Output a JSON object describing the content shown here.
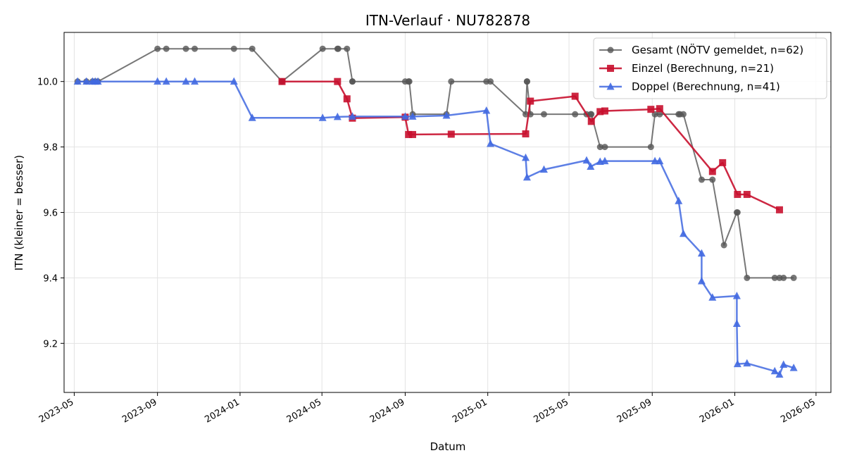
{
  "chart_data": {
    "type": "line",
    "title": "ITN-Verlauf · NU782878",
    "xlabel": "Datum",
    "ylabel": "ITN  (kleiner = besser)",
    "xlim": [
      "2023-04-16",
      "2026-05-23"
    ],
    "ylim": [
      9.05,
      10.15
    ],
    "x_ticks": [
      "2023-05-01",
      "2023-09-01",
      "2024-01-01",
      "2024-05-01",
      "2024-09-01",
      "2025-01-01",
      "2025-05-01",
      "2025-09-01",
      "2026-01-01",
      "2026-05-01"
    ],
    "x_tick_labels": [
      "2023-05",
      "2023-09",
      "2024-01",
      "2024-05",
      "2024-09",
      "2025-01",
      "2025-05",
      "2025-09",
      "2026-01",
      "2026-05"
    ],
    "y_ticks": [
      9.2,
      9.4,
      9.6,
      9.8,
      10.0
    ],
    "y_tick_labels": [
      "9.2",
      "9.4",
      "9.6",
      "9.8",
      "10.0"
    ],
    "grid": true,
    "legend_position": "top-right",
    "series": [
      {
        "name": "Gesamt (NÖTV gemeldet, n=62)",
        "color": "#555555",
        "marker": "circle",
        "points": [
          [
            "2023-05-06",
            10.0
          ],
          [
            "2023-05-19",
            10.0
          ],
          [
            "2023-05-28",
            10.0
          ],
          [
            "2023-06-01",
            10.0
          ],
          [
            "2023-06-05",
            10.0
          ],
          [
            "2023-09-01",
            10.1
          ],
          [
            "2023-09-14",
            10.1
          ],
          [
            "2023-10-13",
            10.1
          ],
          [
            "2023-10-26",
            10.1
          ],
          [
            "2023-12-23",
            10.1
          ],
          [
            "2024-01-19",
            10.1
          ],
          [
            "2024-03-03",
            10.0
          ],
          [
            "2024-03-03",
            10.0
          ],
          [
            "2024-05-02",
            10.1
          ],
          [
            "2024-05-24",
            10.1
          ],
          [
            "2024-05-25",
            10.1
          ],
          [
            "2024-06-07",
            10.1
          ],
          [
            "2024-06-15",
            10.0
          ],
          [
            "2024-06-15",
            10.0
          ],
          [
            "2024-09-01",
            10.0
          ],
          [
            "2024-09-06",
            10.0
          ],
          [
            "2024-09-07",
            10.0
          ],
          [
            "2024-09-12",
            9.9
          ],
          [
            "2024-11-01",
            9.9
          ],
          [
            "2024-11-08",
            10.0
          ],
          [
            "2024-12-30",
            10.0
          ],
          [
            "2025-01-05",
            10.0
          ],
          [
            "2025-02-26",
            9.9
          ],
          [
            "2025-02-28",
            10.0
          ],
          [
            "2025-02-28",
            10.0
          ],
          [
            "2025-03-05",
            9.9
          ],
          [
            "2025-03-25",
            9.9
          ],
          [
            "2025-05-10",
            9.9
          ],
          [
            "2025-05-27",
            9.9
          ],
          [
            "2025-06-02",
            9.9
          ],
          [
            "2025-06-03",
            9.9
          ],
          [
            "2025-06-16",
            9.8
          ],
          [
            "2025-06-23",
            9.8
          ],
          [
            "2025-08-30",
            9.8
          ],
          [
            "2025-09-05",
            9.9
          ],
          [
            "2025-09-12",
            9.9
          ],
          [
            "2025-10-10",
            9.9
          ],
          [
            "2025-10-12",
            9.9
          ],
          [
            "2025-10-17",
            9.9
          ],
          [
            "2025-11-13",
            9.7
          ],
          [
            "2025-11-29",
            9.7
          ],
          [
            "2025-12-16",
            9.5
          ],
          [
            "2026-01-04",
            9.6
          ],
          [
            "2026-01-05",
            9.6
          ],
          [
            "2026-01-19",
            9.4
          ],
          [
            "2026-03-01",
            9.4
          ],
          [
            "2026-03-08",
            9.4
          ],
          [
            "2026-03-14",
            9.4
          ],
          [
            "2026-03-29",
            9.4
          ]
        ]
      },
      {
        "name": "Einzel (Berechnung, n=21)",
        "color": "#c8102e",
        "marker": "square",
        "points": [
          [
            "2024-03-03",
            10.0
          ],
          [
            "2024-05-24",
            10.0
          ],
          [
            "2024-06-07",
            9.947
          ],
          [
            "2024-06-15",
            9.888
          ],
          [
            "2024-09-01",
            9.891
          ],
          [
            "2024-09-06",
            9.838
          ],
          [
            "2024-09-12",
            9.838
          ],
          [
            "2024-11-08",
            9.839
          ],
          [
            "2025-02-26",
            9.84
          ],
          [
            "2025-03-05",
            9.94
          ],
          [
            "2025-05-10",
            9.955
          ],
          [
            "2025-06-03",
            9.878
          ],
          [
            "2025-06-16",
            9.908
          ],
          [
            "2025-06-23",
            9.91
          ],
          [
            "2025-08-30",
            9.915
          ],
          [
            "2025-09-12",
            9.917
          ],
          [
            "2025-11-29",
            9.725
          ],
          [
            "2025-12-14",
            9.752
          ],
          [
            "2026-01-05",
            9.655
          ],
          [
            "2026-01-19",
            9.655
          ],
          [
            "2026-03-08",
            9.608
          ]
        ]
      },
      {
        "name": "Doppel (Berechnung, n=41)",
        "color": "#4169e1",
        "marker": "triangle",
        "points": [
          [
            "2023-05-06",
            10.0
          ],
          [
            "2023-05-19",
            10.0
          ],
          [
            "2023-05-28",
            10.0
          ],
          [
            "2023-06-01",
            10.0
          ],
          [
            "2023-06-05",
            10.0
          ],
          [
            "2023-09-01",
            10.0
          ],
          [
            "2023-09-14",
            10.0
          ],
          [
            "2023-10-13",
            10.0
          ],
          [
            "2023-10-26",
            10.0
          ],
          [
            "2023-12-23",
            10.0
          ],
          [
            "2024-01-19",
            9.889
          ],
          [
            "2024-05-02",
            9.889
          ],
          [
            "2024-05-24",
            9.892
          ],
          [
            "2024-06-15",
            9.893
          ],
          [
            "2024-09-01",
            9.893
          ],
          [
            "2024-09-12",
            9.893
          ],
          [
            "2024-11-01",
            9.896
          ],
          [
            "2024-12-30",
            9.911
          ],
          [
            "2025-01-05",
            9.81
          ],
          [
            "2025-02-26",
            9.767
          ],
          [
            "2025-02-28",
            9.707
          ],
          [
            "2025-03-25",
            9.731
          ],
          [
            "2025-05-27",
            9.759
          ],
          [
            "2025-06-02",
            9.74
          ],
          [
            "2025-06-16",
            9.755
          ],
          [
            "2025-06-23",
            9.757
          ],
          [
            "2025-09-05",
            9.757
          ],
          [
            "2025-09-12",
            9.757
          ],
          [
            "2025-10-10",
            9.635
          ],
          [
            "2025-10-17",
            9.535
          ],
          [
            "2025-11-13",
            9.475
          ],
          [
            "2025-11-13",
            9.39
          ],
          [
            "2025-11-29",
            9.34
          ],
          [
            "2026-01-04",
            9.345
          ],
          [
            "2026-01-04",
            9.26
          ],
          [
            "2026-01-05",
            9.137
          ],
          [
            "2026-01-19",
            9.139
          ],
          [
            "2026-03-01",
            9.115
          ],
          [
            "2026-03-08",
            9.105
          ],
          [
            "2026-03-14",
            9.135
          ],
          [
            "2026-03-29",
            9.125
          ]
        ]
      }
    ]
  }
}
